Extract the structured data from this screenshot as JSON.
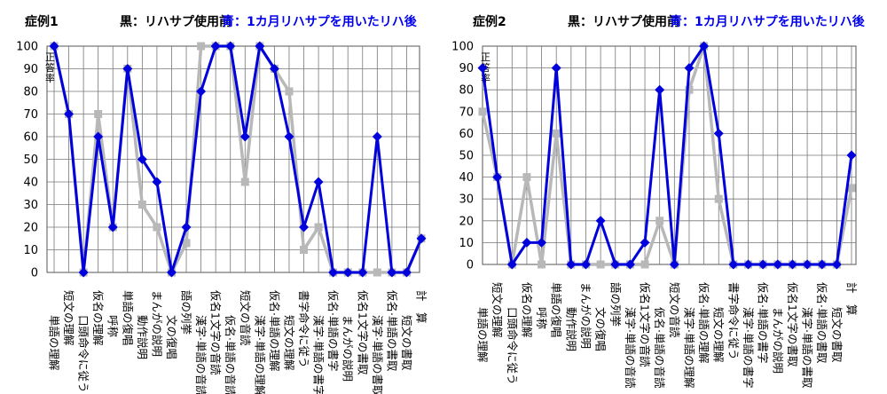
{
  "legend": {
    "black": "黒：リハサプ使用前",
    "blue": "青：1カ月リハサプを用いたリハ後"
  },
  "chart_data": [
    {
      "type": "line",
      "title": "症例1",
      "ylabel": "正答率",
      "ylim": [
        0,
        100
      ],
      "yticks": [
        "0",
        "10",
        "20",
        "30",
        "40",
        "50",
        "60",
        "70",
        "80",
        "90",
        "100"
      ],
      "grid": true,
      "categories": [
        "単語の理解",
        "短文の理解",
        "口頭命令に従う",
        "仮名の理解",
        "呼称",
        "単語の復唱",
        "動作説明",
        "まんがの説明",
        "文の復唱",
        "語の列挙",
        "漢字·単語の音読",
        "仮名1文字の音読",
        "仮名·単語の音読",
        "短文の音読",
        "漢字·単語の理解",
        "仮名·単語の理解",
        "短文の理解",
        "書字命令に従う",
        "漢字·単語の書字",
        "仮名·単語の書字",
        "まんがの説明",
        "仮名1文字の書取",
        "漢字·単語の書取",
        "仮名·単語の書取",
        "短文の書取",
        "計　算"
      ],
      "series": [
        {
          "name": "",
          "color": "#b8b8b8",
          "values": [
            100,
            70,
            0,
            70,
            20,
            90,
            30,
            20,
            0,
            13,
            100,
            100,
            100,
            40,
            100,
            90,
            80,
            10,
            20,
            0,
            0,
            0,
            0,
            0,
            0,
            15
          ]
        },
        {
          "name": "",
          "color": "#0000dd",
          "values": [
            100,
            70,
            0,
            60,
            20,
            90,
            50,
            40,
            0,
            20,
            80,
            100,
            100,
            60,
            100,
            90,
            60,
            20,
            40,
            0,
            0,
            0,
            60,
            0,
            0,
            15
          ]
        }
      ]
    },
    {
      "type": "line",
      "title": "症例2",
      "ylabel": "正答率",
      "ylim": [
        0,
        100
      ],
      "yticks": [
        "0",
        "10",
        "20",
        "30",
        "40",
        "50",
        "60",
        "70",
        "80",
        "90",
        "100"
      ],
      "grid": true,
      "categories": [
        "単語の理解",
        "短文の理解",
        "口頭命令に従う",
        "仮名の理解",
        "呼称",
        "単語の復唱",
        "動作説明",
        "まんがの説明",
        "文の復唱",
        "語の列挙",
        "漢字·単語の音読",
        "仮名1文字の音読",
        "仮名·単語の音読",
        "短文の音読",
        "漢字·単語の理解",
        "仮名·単語の理解",
        "短文の理解",
        "書字命令に従う",
        "漢字·単語の書字",
        "仮名·単語の書字",
        "まんがの説明",
        "仮名1文字の書取",
        "漢字·単語の書取",
        "仮名·単語の書取",
        "短文の書取",
        "計　算"
      ],
      "series": [
        {
          "name": "",
          "color": "#b8b8b8",
          "values": [
            70,
            40,
            0,
            40,
            0,
            60,
            0,
            0,
            0,
            0,
            0,
            0,
            20,
            0,
            80,
            100,
            30,
            0,
            0,
            0,
            0,
            0,
            0,
            0,
            0,
            35
          ]
        },
        {
          "name": "",
          "color": "#0000dd",
          "values": [
            90,
            40,
            0,
            10,
            10,
            90,
            0,
            0,
            20,
            0,
            0,
            10,
            80,
            0,
            90,
            100,
            60,
            0,
            0,
            0,
            0,
            0,
            0,
            0,
            0,
            50
          ]
        }
      ]
    }
  ]
}
